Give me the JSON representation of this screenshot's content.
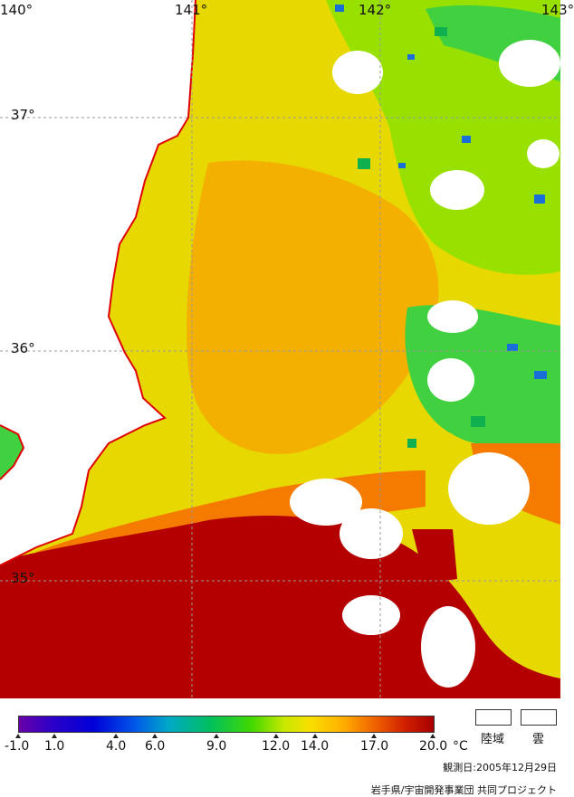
{
  "map": {
    "colors": {
      "warm": "#b40000",
      "orange": "#f47a00",
      "amber": "#f4b000",
      "yellow": "#e6d800",
      "greenyellow": "#98e000",
      "green": "#40d040",
      "deepgreen": "#10b050",
      "blue": "#1a6ed8",
      "land": "#ffffff",
      "coast": "#e00000",
      "grid": "#9a9a9a"
    },
    "grid_labels": {
      "lon_140": "140°",
      "lon_141": "141°",
      "lon_142": "142°",
      "lon_143": "143°",
      "lat_37": "37°",
      "lat_36": "36°",
      "lat_35": "35°"
    }
  },
  "legend": {
    "ticks": [
      "-1.0",
      "1.0",
      "4.0",
      "6.0",
      "9.0",
      "12.0",
      "14.0",
      "17.0",
      "20.0"
    ],
    "unit": "°C",
    "land_label": "陸域",
    "cloud_label": "雲"
  },
  "footer": {
    "date": "観測日:2005年12月29日",
    "credit": "岩手県/宇宙開発事業団 共同プロジェクト"
  }
}
